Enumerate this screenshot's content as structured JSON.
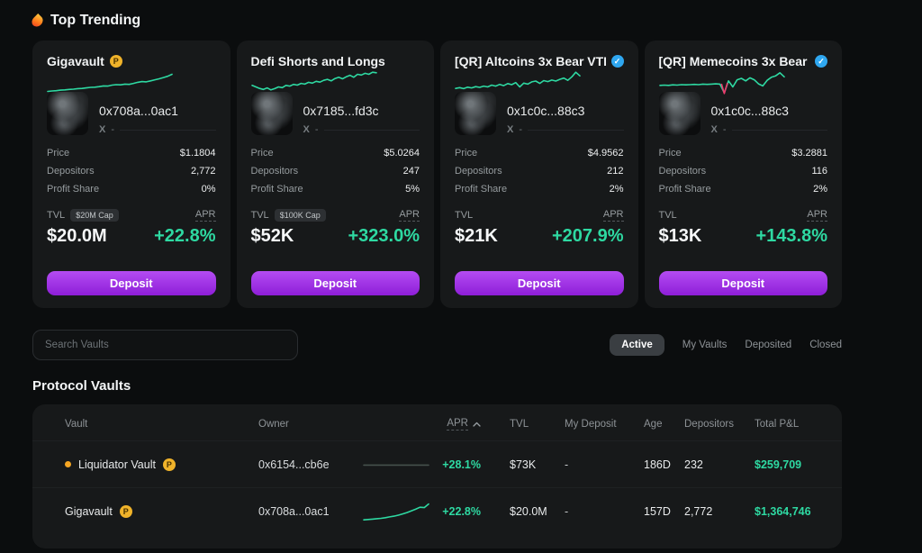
{
  "colors": {
    "green": "#2ed9a2",
    "purple": "#a432ea",
    "gold": "#f0b32a",
    "blue": "#2fa7f0",
    "red": "#ef3a6d",
    "flat": "#46514c"
  },
  "header": {
    "title": "Top Trending"
  },
  "labels": {
    "price": "Price",
    "depositors": "Depositors",
    "profit_share": "Profit Share",
    "tvl": "TVL",
    "apr": "APR",
    "deposit": "Deposit",
    "x": "X",
    "x_sep": "-"
  },
  "trending_cards": [
    {
      "title": "Gigavault",
      "badge_gold": true,
      "badge_verified": false,
      "address": "0x708a...0ac1",
      "x_handle": "-",
      "price": "$1.1804",
      "depositors": "2,772",
      "profit_share": "0%",
      "cap_badge": "$20M Cap",
      "tvl": "$20.0M",
      "apr": "+22.8%",
      "sparkline": [
        16,
        18,
        19,
        21,
        22,
        24,
        25,
        27,
        28,
        30,
        32,
        33,
        35,
        38,
        37,
        41,
        43,
        42,
        45,
        44,
        48,
        52,
        55,
        54,
        58,
        62,
        66,
        71,
        76,
        84
      ]
    },
    {
      "title": "Defi Shorts and Longs",
      "badge_gold": false,
      "badge_verified": false,
      "address": "0x7185...fd3c",
      "x_handle": "-",
      "price": "$5.0264",
      "depositors": "247",
      "profit_share": "5%",
      "cap_badge": "$100K Cap",
      "tvl": "$52K",
      "apr": "+323.0%",
      "sparkline": [
        40,
        34,
        28,
        24,
        30,
        22,
        27,
        34,
        31,
        40,
        37,
        44,
        41,
        48,
        45,
        52,
        49,
        56,
        53,
        60,
        64,
        58,
        67,
        72,
        66,
        74,
        80,
        72,
        84,
        81,
        88,
        84,
        92,
        90
      ]
    },
    {
      "title": "[QR] Altcoins 3x Bear VTF",
      "badge_gold": false,
      "badge_verified": true,
      "address": "0x1c0c...88c3",
      "x_handle": "-",
      "price": "$4.9562",
      "depositors": "212",
      "profit_share": "2%",
      "cap_badge": "",
      "tvl": "$21K",
      "apr": "+207.9%",
      "sparkline": [
        28,
        31,
        27,
        33,
        30,
        35,
        32,
        37,
        34,
        41,
        37,
        44,
        39,
        47,
        43,
        51,
        34,
        49,
        45,
        54,
        57,
        48,
        59,
        55,
        61,
        57,
        64,
        69,
        60,
        74,
        92,
        78
      ]
    },
    {
      "title": "[QR] Memecoins 3x Bear ...",
      "badge_gold": false,
      "badge_verified": true,
      "address": "0x1c0c...88c3",
      "x_handle": "-",
      "price": "$3.2881",
      "depositors": "116",
      "profit_share": "2%",
      "cap_badge": "",
      "tvl": "$13K",
      "apr": "+143.8%",
      "sparkline": [
        40,
        41,
        40,
        42,
        41,
        43,
        42,
        43,
        44,
        43,
        45,
        44,
        45,
        46,
        45,
        10,
        58,
        34,
        62,
        68,
        58,
        70,
        62,
        46,
        38,
        60,
        72,
        78,
        90,
        74
      ],
      "accent": [
        [
          14.4,
          44
        ],
        [
          15,
          8
        ],
        [
          15.7,
          48
        ]
      ]
    }
  ],
  "search": {
    "placeholder": "Search Vaults"
  },
  "filters": {
    "items": [
      "Active",
      "My Vaults",
      "Deposited",
      "Closed"
    ],
    "active": "Active"
  },
  "section": {
    "title": "Protocol Vaults"
  },
  "table": {
    "columns": [
      "Vault",
      "Owner",
      "APR",
      "TVL",
      "My Deposit",
      "Age",
      "Depositors",
      "Total P&L"
    ],
    "sort_column": "APR",
    "rows": [
      {
        "live": true,
        "vault": "Liquidator Vault",
        "badge_gold": true,
        "owner": "0x6154...cb6e",
        "apr": "+28.1%",
        "spark": [
          48,
          48,
          48,
          48,
          48,
          48,
          48,
          48,
          48,
          48,
          48,
          48
        ],
        "spark_color": "#46514c",
        "tvl": "$73K",
        "my_deposit": "-",
        "age": "186D",
        "depositors": "232",
        "total_pnl": "$259,709"
      },
      {
        "live": false,
        "vault": "Gigavault",
        "badge_gold": true,
        "owner": "0x708a...0ac1",
        "apr": "+22.8%",
        "spark": [
          8,
          10,
          12,
          14,
          16,
          19,
          23,
          27,
          32,
          38,
          45,
          53,
          62,
          72,
          70,
          88
        ],
        "spark_color": "#2ed9a2",
        "tvl": "$20.0M",
        "my_deposit": "-",
        "age": "157D",
        "depositors": "2,772",
        "total_pnl": "$1,364,746"
      }
    ]
  }
}
